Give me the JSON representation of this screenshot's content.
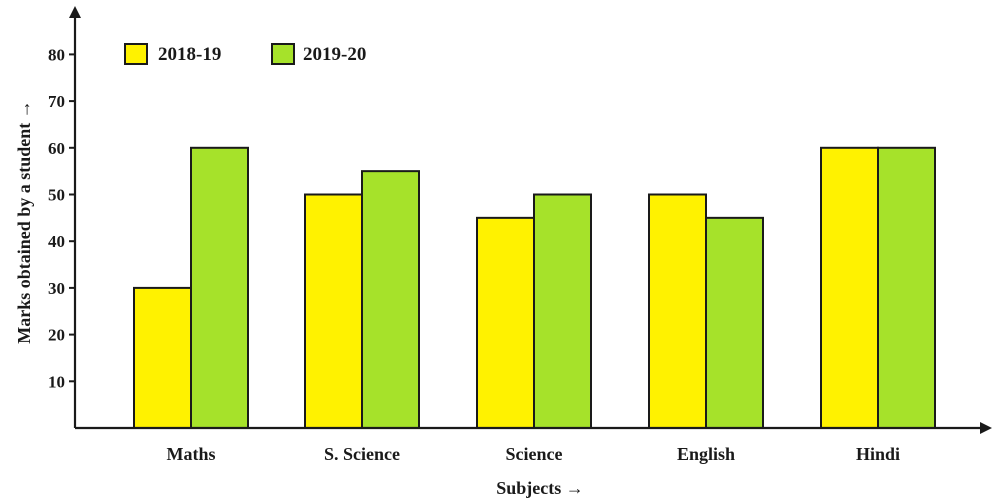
{
  "chart_data": {
    "type": "bar",
    "categories": [
      "Maths",
      "S. Science",
      "Science",
      "English",
      "Hindi"
    ],
    "series": [
      {
        "name": "2018-19",
        "values": [
          30,
          50,
          45,
          50,
          60
        ],
        "color": "#fff200"
      },
      {
        "name": "2019-20",
        "values": [
          60,
          55,
          50,
          45,
          60
        ],
        "color": "#a6e22a"
      }
    ],
    "xlabel": "Subjects →",
    "ylabel": "Marks obtained by a student →",
    "yticks": [
      10,
      20,
      30,
      40,
      50,
      60,
      70,
      80
    ],
    "ylim": [
      0,
      88
    ],
    "grid": false,
    "legend_position": "top-left"
  }
}
